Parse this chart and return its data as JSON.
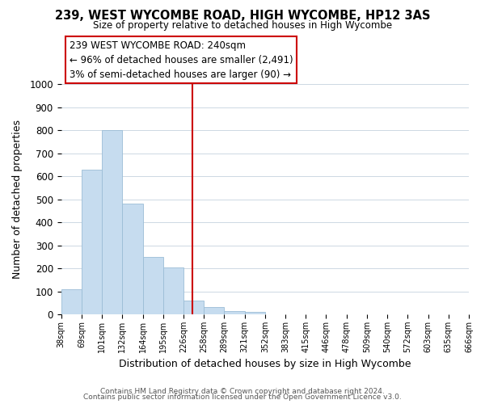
{
  "title": "239, WEST WYCOMBE ROAD, HIGH WYCOMBE, HP12 3AS",
  "subtitle": "Size of property relative to detached houses in High Wycombe",
  "xlabel": "Distribution of detached houses by size in High Wycombe",
  "ylabel": "Number of detached properties",
  "bar_values": [
    110,
    630,
    800,
    480,
    250,
    205,
    60,
    30,
    15,
    10,
    0,
    0,
    0,
    0,
    0,
    0,
    0,
    0,
    0,
    0
  ],
  "bar_labels": [
    "38sqm",
    "69sqm",
    "101sqm",
    "132sqm",
    "164sqm",
    "195sqm",
    "226sqm",
    "258sqm",
    "289sqm",
    "321sqm",
    "352sqm",
    "383sqm",
    "415sqm",
    "446sqm",
    "478sqm",
    "509sqm",
    "540sqm",
    "572sqm",
    "603sqm",
    "635sqm",
    "666sqm"
  ],
  "bar_color": "#c6dcef",
  "bar_edge_color": "#9bbdd6",
  "vline_color": "#cc0000",
  "annotation_title": "239 WEST WYCOMBE ROAD: 240sqm",
  "annotation_line1": "← 96% of detached houses are smaller (2,491)",
  "annotation_line2": "3% of semi-detached houses are larger (90) →",
  "annotation_box_color": "#ffffff",
  "annotation_box_edge": "#cc0000",
  "ylim": [
    0,
    1000
  ],
  "yticks": [
    0,
    100,
    200,
    300,
    400,
    500,
    600,
    700,
    800,
    900,
    1000
  ],
  "footnote1": "Contains HM Land Registry data © Crown copyright and database right 2024.",
  "footnote2": "Contains public sector information licensed under the Open Government Licence v3.0.",
  "background_color": "#ffffff",
  "grid_color": "#cdd8e3"
}
